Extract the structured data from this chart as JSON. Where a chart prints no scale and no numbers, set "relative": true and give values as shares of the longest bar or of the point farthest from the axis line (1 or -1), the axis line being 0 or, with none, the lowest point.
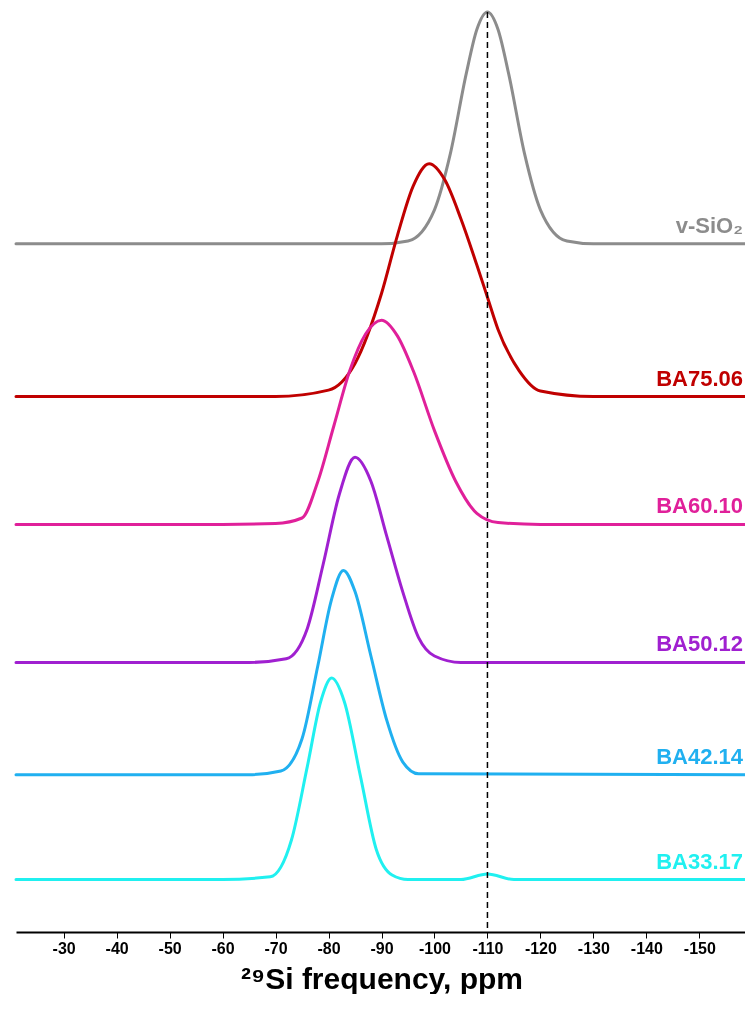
{
  "chart_data": {
    "type": "line",
    "relative": true,
    "xlabel": "²⁹Si frequency, ppm",
    "xlim": [
      -21,
      -159
    ],
    "xticks": [
      -30,
      -40,
      -50,
      -60,
      -70,
      -80,
      -90,
      -100,
      -110,
      -120,
      -130,
      -140,
      -150
    ],
    "tick_labels": "x",
    "legend": false,
    "grid": false,
    "line_style": "solid",
    "marker": "none",
    "ref_lines": [
      {
        "axis": "x",
        "value": -110,
        "line_style": "dashed",
        "color": "#000000"
      }
    ],
    "series": [
      {
        "name": "v-SiO₂",
        "color": "#8c8c8c",
        "x": [
          -21,
          -40,
          -60,
          -80,
          -90,
          -95,
          -100,
          -103,
          -106,
          -108,
          -110,
          -112,
          -114,
          -117,
          -120,
          -125,
          -130,
          -140,
          -159
        ],
        "values": [
          0.748,
          0.748,
          0.748,
          0.748,
          0.748,
          0.751,
          0.785,
          0.846,
          0.933,
          0.981,
          1.0,
          0.981,
          0.933,
          0.846,
          0.785,
          0.751,
          0.748,
          0.748,
          0.748
        ]
      },
      {
        "name": "BA75.06",
        "color": "#c00000",
        "x": [
          -21,
          -50,
          -70,
          -80,
          -85,
          -90,
          -93,
          -96,
          -99,
          -102,
          -105,
          -108,
          -110,
          -112,
          -116,
          -120,
          -130,
          -159
        ],
        "values": [
          0.582,
          0.582,
          0.582,
          0.589,
          0.618,
          0.694,
          0.757,
          0.811,
          0.835,
          0.817,
          0.775,
          0.725,
          0.69,
          0.655,
          0.61,
          0.588,
          0.582,
          0.582
        ]
      },
      {
        "name": "BA60.10",
        "color": "#e0209a",
        "x": [
          -21,
          -60,
          -70,
          -75,
          -78,
          -81,
          -84,
          -87,
          -90,
          -93,
          -96,
          -100,
          -104,
          -108,
          -112,
          -120,
          -159
        ],
        "values": [
          0.443,
          0.443,
          0.444,
          0.45,
          0.49,
          0.55,
          0.61,
          0.65,
          0.665,
          0.648,
          0.61,
          0.545,
          0.49,
          0.455,
          0.445,
          0.443,
          0.443
        ]
      },
      {
        "name": "BA50.12",
        "color": "#a020d0",
        "x": [
          -21,
          -65,
          -72,
          -76,
          -79,
          -82,
          -85,
          -88,
          -91,
          -94,
          -97,
          -100,
          -105,
          -159
        ],
        "values": [
          0.293,
          0.293,
          0.297,
          0.33,
          0.4,
          0.475,
          0.516,
          0.49,
          0.43,
          0.37,
          0.32,
          0.3,
          0.293,
          0.293
        ]
      },
      {
        "name": "BA42.14",
        "color": "#20b0f0",
        "x": [
          -21,
          -65,
          -71,
          -75,
          -78,
          -80.5,
          -82.8,
          -85,
          -88,
          -91,
          -94,
          -97,
          -159
        ],
        "values": [
          0.171,
          0.171,
          0.175,
          0.21,
          0.29,
          0.36,
          0.393,
          0.37,
          0.3,
          0.23,
          0.185,
          0.172,
          0.171
        ]
      },
      {
        "name": "BA33.17",
        "color": "#20f0f0",
        "x": [
          -21,
          -60,
          -69,
          -73,
          -76,
          -78.5,
          -80.6,
          -83,
          -86,
          -89,
          -92,
          -95,
          -105,
          -110,
          -115,
          -159
        ],
        "values": [
          0.057,
          0.057,
          0.06,
          0.1,
          0.18,
          0.25,
          0.276,
          0.25,
          0.17,
          0.09,
          0.062,
          0.057,
          0.057,
          0.063,
          0.057,
          0.057
        ]
      }
    ]
  }
}
